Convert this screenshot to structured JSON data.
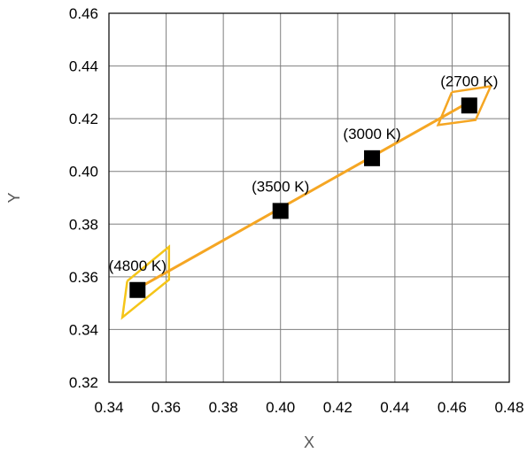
{
  "chart_data": {
    "type": "scatter",
    "title": "",
    "xlabel": "X",
    "ylabel": "Y",
    "xlim": [
      0.34,
      0.48
    ],
    "ylim": [
      0.32,
      0.46
    ],
    "grid": true,
    "x_ticks": [
      "0.34",
      "0.36",
      "0.38",
      "0.40",
      "0.42",
      "0.44",
      "0.46",
      "0.48"
    ],
    "y_ticks": [
      "0.32",
      "0.34",
      "0.36",
      "0.38",
      "0.40",
      "0.42",
      "0.44",
      "0.46"
    ],
    "colors": {
      "line": "#f5a623",
      "quad_outer": "#f5c518",
      "quad_inner": "#f5a623",
      "marker": "#000000",
      "grid": "#7f7f7f",
      "frame": "#000000"
    },
    "series": [
      {
        "type": "line",
        "x": [
          0.3488,
          0.4659
        ],
        "y": [
          0.3548,
          0.4263
        ]
      },
      {
        "type": "scatter",
        "points": [
          {
            "x": 0.35,
            "y": 0.355,
            "label": "(4800 K)"
          },
          {
            "x": 0.4,
            "y": 0.385,
            "label": "(3500 K)"
          },
          {
            "x": 0.432,
            "y": 0.405,
            "label": "(3000 K)"
          },
          {
            "x": 0.466,
            "y": 0.425,
            "label": "(2700 K)"
          }
        ]
      },
      {
        "type": "polygon",
        "name_key": "quad_4800",
        "color": "#f5c518",
        "points": [
          [
            0.3464,
            0.3584
          ],
          [
            0.361,
            0.3714
          ],
          [
            0.361,
            0.3589
          ],
          [
            0.3447,
            0.3446
          ],
          [
            0.3464,
            0.3584
          ]
        ]
      },
      {
        "type": "polygon",
        "name_key": "quad_2700",
        "color": "#f5a623",
        "points": [
          [
            0.4599,
            0.4301
          ],
          [
            0.4735,
            0.4323
          ],
          [
            0.4682,
            0.4195
          ],
          [
            0.4551,
            0.4176
          ],
          [
            0.4599,
            0.4301
          ]
        ]
      }
    ],
    "annotations": [
      {
        "text": "(4800 K)",
        "x": 0.35,
        "y": 0.355
      },
      {
        "text": "(3500 K)",
        "x": 0.4,
        "y": 0.385
      },
      {
        "text": "(3000 K)",
        "x": 0.432,
        "y": 0.405
      },
      {
        "text": "(2700 K)",
        "x": 0.466,
        "y": 0.425
      }
    ]
  }
}
